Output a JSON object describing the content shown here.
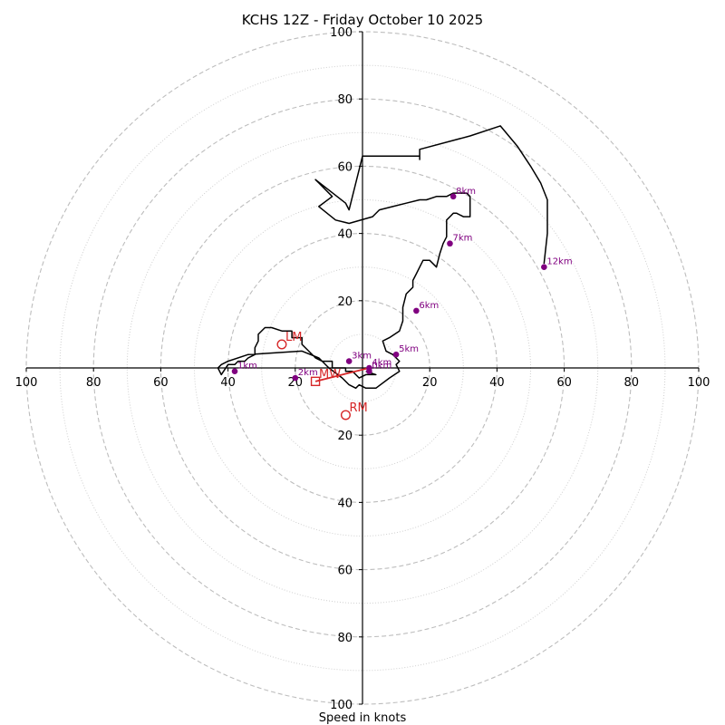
{
  "chart_data": {
    "type": "hodograph",
    "title": "KCHS 12Z - Friday October 10 2025",
    "xlabel": "Speed in knots",
    "rings_major": [
      20,
      40,
      60,
      80,
      100
    ],
    "rings_minor": [
      10,
      30,
      50,
      70,
      90
    ],
    "x_ticks": [
      {
        "value": -100,
        "label": "100"
      },
      {
        "value": -80,
        "label": "80"
      },
      {
        "value": -60,
        "label": "60"
      },
      {
        "value": -40,
        "label": "40"
      },
      {
        "value": -20,
        "label": "20"
      },
      {
        "value": 20,
        "label": "20"
      },
      {
        "value": 40,
        "label": "40"
      },
      {
        "value": 60,
        "label": "60"
      },
      {
        "value": 80,
        "label": "80"
      },
      {
        "value": 100,
        "label": "100"
      }
    ],
    "y_ticks": [
      {
        "value": 100,
        "label": "100"
      },
      {
        "value": 80,
        "label": "80"
      },
      {
        "value": 60,
        "label": "60"
      },
      {
        "value": 40,
        "label": "40"
      },
      {
        "value": 20,
        "label": "20"
      },
      {
        "value": -20,
        "label": "20"
      },
      {
        "value": -40,
        "label": "40"
      },
      {
        "value": -60,
        "label": "60"
      },
      {
        "value": -80,
        "label": "80"
      },
      {
        "value": -100,
        "label": "100"
      }
    ],
    "wind_trace": {
      "units": "knots",
      "u": [
        1,
        4,
        1,
        -1,
        -2,
        -3,
        -5,
        -5,
        -7,
        -9,
        -9,
        -10,
        -12,
        -14,
        -16,
        -18,
        -18,
        -20,
        -21,
        -21,
        -22,
        -24,
        -27,
        -29,
        -31,
        -31,
        -32,
        -32,
        -34,
        -34,
        -35,
        -37,
        -38,
        -40,
        -42,
        -43,
        -42,
        -40,
        -34,
        -18,
        -13,
        -10,
        -6,
        -4,
        -2,
        -1,
        1,
        4,
        8,
        11,
        10,
        11,
        9,
        7,
        6,
        8,
        11,
        12,
        12,
        13,
        15,
        15,
        16,
        17,
        18,
        20,
        22,
        23,
        24,
        25,
        25,
        26,
        26,
        26,
        27,
        28,
        30,
        32,
        32,
        31,
        28,
        28,
        27,
        25,
        24,
        22,
        19,
        17,
        13,
        9,
        5,
        3,
        -4,
        -8,
        -13,
        -9,
        -13,
        -14,
        -5,
        -4,
        0,
        17,
        17,
        17,
        17,
        32,
        41,
        46,
        50,
        53,
        55,
        55,
        54
      ],
      "v": [
        -1,
        -2,
        -2,
        -3,
        -2,
        -1,
        -1,
        0,
        0,
        0,
        2,
        2,
        2,
        3,
        5,
        7,
        9,
        9,
        9,
        11,
        11,
        11,
        12,
        12,
        10,
        8,
        6,
        4,
        3,
        3,
        2,
        2,
        1,
        1,
        -2,
        0,
        1,
        2,
        4,
        5,
        3,
        0,
        -3,
        -5,
        -6,
        -5,
        -6,
        -6,
        -3,
        -1,
        1,
        2,
        4,
        5,
        8,
        9,
        11,
        14,
        18,
        22,
        24,
        26,
        28,
        30,
        32,
        32,
        30,
        34,
        37,
        39,
        44,
        45,
        45,
        45,
        46,
        46,
        45,
        45,
        51,
        52,
        52,
        52,
        52,
        51,
        51,
        51,
        50,
        50,
        49,
        48,
        47,
        45,
        43,
        44,
        48,
        51,
        55,
        56,
        49,
        47,
        63,
        63,
        62,
        63,
        65,
        69,
        72,
        66,
        60,
        55,
        50,
        40,
        31
      ]
    },
    "height_markers": [
      {
        "label": "0km",
        "u": 2,
        "v": -1
      },
      {
        "label": "1km",
        "u": -38,
        "v": -1
      },
      {
        "label": "2km",
        "u": -20,
        "v": -3
      },
      {
        "label": "3km",
        "u": -4,
        "v": 2
      },
      {
        "label": "4km",
        "u": 2,
        "v": 0
      },
      {
        "label": "5km",
        "u": 10,
        "v": 4
      },
      {
        "label": "6km",
        "u": 16,
        "v": 17
      },
      {
        "label": "7km",
        "u": 26,
        "v": 37
      },
      {
        "label": "8km",
        "u": 27,
        "v": 51
      },
      {
        "label": "12km",
        "u": 54,
        "v": 30
      }
    ],
    "storm_motions": [
      {
        "label": "LM",
        "u": -24,
        "v": 7
      },
      {
        "label": "MW",
        "u": -14,
        "v": -4
      },
      {
        "label": "RM",
        "u": -5,
        "v": -14
      }
    ],
    "mean_wind_vector": {
      "from_u": 2,
      "from_v": 0,
      "to_u": -14,
      "to_v": -4
    }
  },
  "colors": {
    "trace": "#000000",
    "height_marker": "#800080",
    "storm_motion": "#d62728",
    "ring": "#bdbdbd",
    "background": "#ffffff"
  }
}
